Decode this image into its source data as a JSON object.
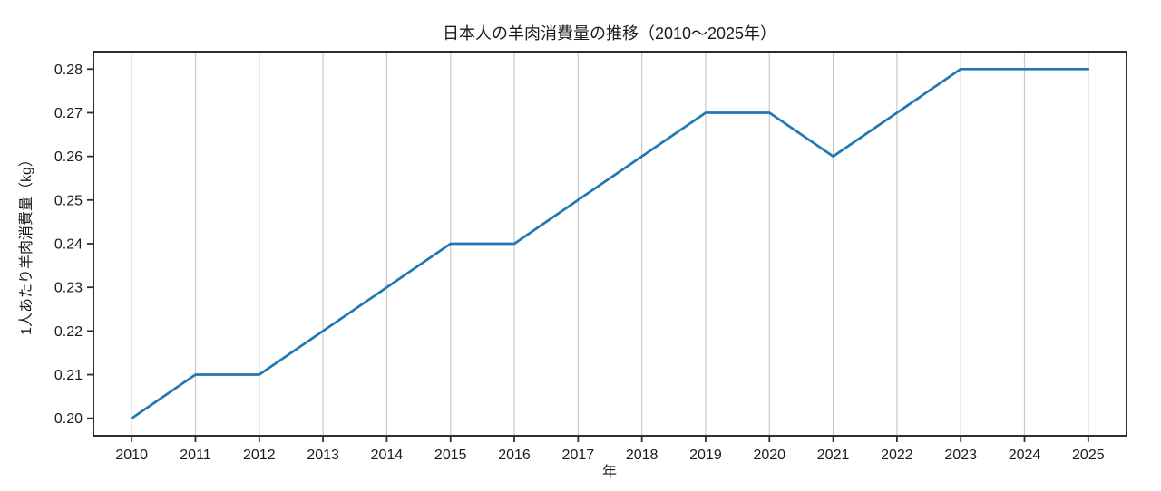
{
  "chart_data": {
    "type": "line",
    "title": "日本人の羊肉消費量の推移（2010〜2025年）",
    "xlabel": "年",
    "ylabel": "1人あたり羊肉消費量（kg）",
    "x": [
      2010,
      2011,
      2012,
      2013,
      2014,
      2015,
      2016,
      2017,
      2018,
      2019,
      2020,
      2021,
      2022,
      2023,
      2024,
      2025
    ],
    "series": [
      {
        "name": "1人あたり羊肉消費量",
        "values": [
          0.2,
          0.21,
          0.21,
          0.22,
          0.23,
          0.24,
          0.24,
          0.25,
          0.26,
          0.27,
          0.27,
          0.26,
          0.27,
          0.28,
          0.28,
          0.28
        ]
      }
    ],
    "y_ticks": [
      0.2,
      0.21,
      0.22,
      0.23,
      0.24,
      0.25,
      0.26,
      0.27,
      0.28
    ],
    "y_tick_decimals": 2,
    "ylim": [
      0.196,
      0.284
    ],
    "xlim": [
      2009.4,
      2025.6
    ],
    "grid": "vertical-only",
    "legend": "none",
    "colors": {
      "line": "#1f77b4",
      "grid": "#c9c9c9",
      "axis": "#2e2e2e",
      "text": "#1a1a1a",
      "background": "#ffffff"
    }
  }
}
